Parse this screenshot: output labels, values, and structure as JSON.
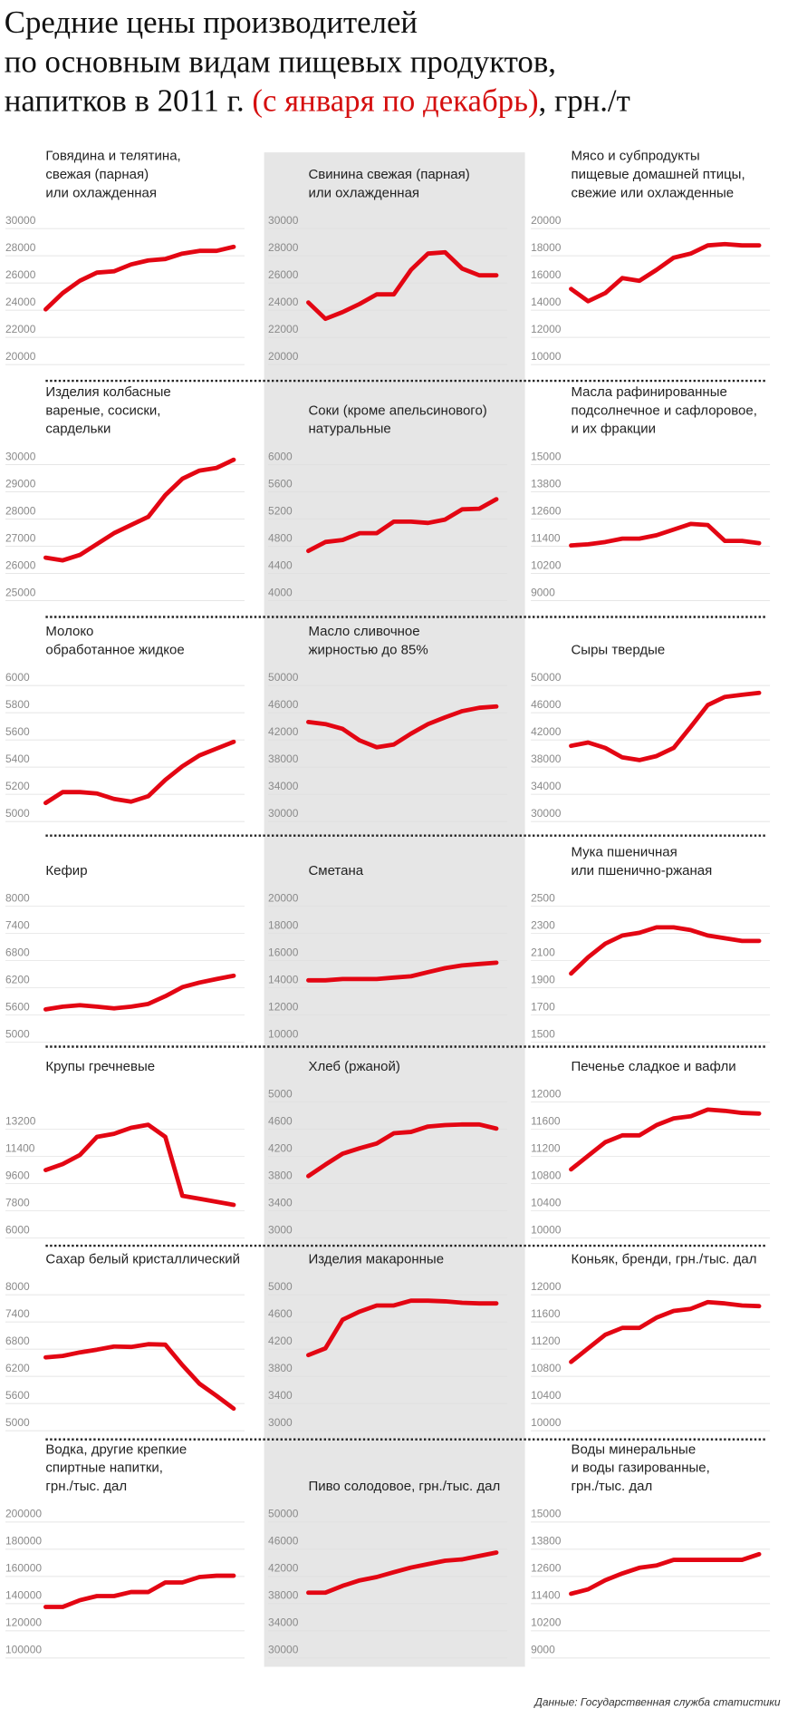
{
  "header": {
    "title": [
      "Средние цены производителей",
      "по основным видам пищевых продуктов,",
      "напитков в 2011 г."
    ],
    "title_highlight": "(с января по декабрь)",
    "title_unit": ", грн./т"
  },
  "source": "Данные: Государственная служба статистики",
  "chart_data": [
    {
      "type": "line",
      "title": [
        "Говядина и телятина,",
        "свежая (парная)",
        "или охлажденная"
      ],
      "color": "#e30613",
      "grid": true,
      "ylim": [
        20000,
        30000
      ],
      "yticks": [
        20000,
        22000,
        24000,
        26000,
        28000,
        30000
      ],
      "values": [
        23500,
        24700,
        25600,
        26200,
        26300,
        26800,
        27100,
        27200,
        27600,
        27800,
        27800,
        28100
      ]
    },
    {
      "type": "line",
      "title": [
        "Свинина свежая (парная)",
        "или охлажденная"
      ],
      "color": "#e30613",
      "grid": true,
      "ylim": [
        20000,
        30000
      ],
      "yticks": [
        20000,
        22000,
        24000,
        26000,
        28000,
        30000
      ],
      "values": [
        24000,
        22800,
        23300,
        23900,
        24600,
        24600,
        26400,
        27600,
        27700,
        26500,
        26000,
        26000
      ]
    },
    {
      "type": "line",
      "title": [
        "Мясо и субпродукты",
        "пищевые домашней птицы,",
        "свежие или охлажденные"
      ],
      "color": "#e30613",
      "grid": true,
      "ylim": [
        10000,
        20000
      ],
      "yticks": [
        10000,
        12000,
        14000,
        16000,
        18000,
        20000
      ],
      "values": [
        15000,
        14100,
        14700,
        15800,
        15600,
        16400,
        17300,
        17600,
        18200,
        18300,
        18200,
        18200
      ]
    },
    {
      "type": "line",
      "title": [
        "Изделия колбасные",
        "вареные, сосиски,",
        "сардельки"
      ],
      "color": "#e30613",
      "grid": true,
      "ylim": [
        25000,
        30000
      ],
      "yticks": [
        25000,
        26000,
        27000,
        28000,
        29000,
        30000
      ],
      "values": [
        26300,
        26200,
        26400,
        26800,
        27200,
        27500,
        27800,
        28600,
        29200,
        29500,
        29600,
        29900
      ]
    },
    {
      "type": "line",
      "title": [
        "Соки (кроме апельсинового)",
        "натуральные"
      ],
      "color": "#e30613",
      "grid": true,
      "ylim": [
        4000,
        6000
      ],
      "yticks": [
        4000,
        4400,
        4800,
        5200,
        5600,
        6000
      ],
      "values": [
        4620,
        4750,
        4780,
        4880,
        4880,
        5050,
        5050,
        5030,
        5080,
        5230,
        5240,
        5380
      ]
    },
    {
      "type": "line",
      "title": [
        "Масла рафинированные",
        "подсолнечное и сафлоровое,",
        "и их фракции"
      ],
      "color": "#e30613",
      "grid": true,
      "ylim": [
        9000,
        15000
      ],
      "yticks": [
        9000,
        10200,
        11400,
        12600,
        13800,
        15000
      ],
      "values": [
        11100,
        11150,
        11250,
        11400,
        11400,
        11550,
        11800,
        12050,
        12000,
        11300,
        11300,
        11200
      ]
    },
    {
      "type": "line",
      "title": [
        "Молоко",
        "обработанное жидкое"
      ],
      "color": "#e30613",
      "grid": true,
      "ylim": [
        5000,
        6000
      ],
      "yticks": [
        5000,
        5200,
        5400,
        5600,
        5800,
        6000
      ],
      "values": [
        5080,
        5160,
        5160,
        5150,
        5110,
        5090,
        5130,
        5250,
        5350,
        5430,
        5480,
        5530
      ]
    },
    {
      "type": "line",
      "title": [
        "Масло сливочное",
        "жирностью до 85%"
      ],
      "color": "#e30613",
      "grid": true,
      "ylim": [
        30000,
        50000
      ],
      "yticks": [
        30000,
        34000,
        38000,
        42000,
        46000,
        50000
      ],
      "values": [
        43500,
        43200,
        42500,
        40800,
        39800,
        40200,
        41800,
        43200,
        44200,
        45100,
        45600,
        45800
      ]
    },
    {
      "type": "line",
      "title": [
        "Сыры твердые"
      ],
      "color": "#e30613",
      "grid": true,
      "ylim": [
        30000,
        50000
      ],
      "yticks": [
        30000,
        34000,
        38000,
        42000,
        46000,
        50000
      ],
      "values": [
        40000,
        40500,
        39700,
        38300,
        37900,
        38500,
        39700,
        42800,
        46000,
        47200,
        47500,
        47800
      ]
    },
    {
      "type": "line",
      "title": [
        "Кефир"
      ],
      "color": "#e30613",
      "grid": true,
      "ylim": [
        5000,
        8000
      ],
      "yticks": [
        5000,
        5600,
        6200,
        6800,
        7400,
        8000
      ],
      "values": [
        5560,
        5620,
        5650,
        5620,
        5580,
        5620,
        5680,
        5850,
        6050,
        6150,
        6230,
        6300
      ]
    },
    {
      "type": "line",
      "title": [
        "Сметана"
      ],
      "color": "#e30613",
      "grid": true,
      "ylim": [
        10000,
        20000
      ],
      "yticks": [
        10000,
        12000,
        14000,
        16000,
        18000,
        20000
      ],
      "values": [
        14000,
        14000,
        14100,
        14100,
        14100,
        14200,
        14300,
        14600,
        14900,
        15100,
        15200,
        15300
      ]
    },
    {
      "type": "line",
      "title": [
        "Мука пшеничная",
        "или пшенично-ржаная"
      ],
      "color": "#e30613",
      "grid": true,
      "ylim": [
        1500,
        2500
      ],
      "yticks": [
        1500,
        1700,
        1900,
        2100,
        2300,
        2500
      ],
      "values": [
        1950,
        2070,
        2170,
        2230,
        2250,
        2290,
        2290,
        2270,
        2230,
        2210,
        2190,
        2190
      ]
    },
    {
      "type": "line",
      "title": [
        "Крупы гречневые"
      ],
      "color": "#e30613",
      "grid": true,
      "ylim": [
        6000,
        15000
      ],
      "yticks": [
        6000,
        7800,
        9600,
        11400,
        13200
      ],
      "values": [
        10000,
        10400,
        11000,
        12200,
        12400,
        12800,
        13000,
        12200,
        8300,
        8100,
        7900,
        7700
      ]
    },
    {
      "type": "line",
      "title": [
        "Хлеб (ржаной)"
      ],
      "color": "#e30613",
      "grid": true,
      "ylim": [
        3000,
        5000
      ],
      "yticks": [
        3000,
        3400,
        3800,
        4200,
        4600,
        5000
      ],
      "values": [
        3800,
        3970,
        4130,
        4210,
        4280,
        4430,
        4450,
        4530,
        4550,
        4560,
        4560,
        4500
      ]
    },
    {
      "type": "line",
      "title": [
        "Печенье сладкое и вафли"
      ],
      "color": "#e30613",
      "grid": true,
      "ylim": [
        10000,
        12000
      ],
      "yticks": [
        10000,
        10400,
        10800,
        11200,
        11600,
        12000
      ],
      "values": [
        10900,
        11100,
        11300,
        11400,
        11400,
        11550,
        11650,
        11680,
        11780,
        11760,
        11730,
        11720
      ]
    },
    {
      "type": "line",
      "title": [
        "Сахар белый кристаллический"
      ],
      "color": "#e30613",
      "grid": true,
      "ylim": [
        5000,
        8000
      ],
      "yticks": [
        5000,
        5600,
        6200,
        6800,
        7400,
        8000
      ],
      "values": [
        6450,
        6480,
        6560,
        6620,
        6690,
        6680,
        6740,
        6730,
        6280,
        5870,
        5600,
        5320
      ]
    },
    {
      "type": "line",
      "title": [
        "Изделия макаронные"
      ],
      "color": "#e30613",
      "grid": true,
      "ylim": [
        3000,
        5000
      ],
      "yticks": [
        3000,
        3400,
        3800,
        4200,
        4600,
        5000
      ],
      "values": [
        4000,
        4100,
        4520,
        4640,
        4730,
        4730,
        4800,
        4800,
        4790,
        4770,
        4760,
        4760
      ]
    },
    {
      "type": "line",
      "title": [
        "Коньяк, бренди, грн./тыс. дал"
      ],
      "color": "#e30613",
      "grid": true,
      "ylim": [
        10000,
        12000
      ],
      "yticks": [
        10000,
        10400,
        10800,
        11200,
        11600,
        12000
      ],
      "values": [
        10900,
        11100,
        11300,
        11400,
        11400,
        11550,
        11650,
        11680,
        11780,
        11760,
        11730,
        11720
      ]
    },
    {
      "type": "line",
      "title": [
        "Водка, другие крепкие",
        "спиртные напитки,",
        "грн./тыс. дал"
      ],
      "color": "#e30613",
      "grid": true,
      "ylim": [
        100000,
        200000
      ],
      "yticks": [
        100000,
        120000,
        140000,
        160000,
        180000,
        200000
      ],
      "values": [
        132000,
        132000,
        137000,
        140000,
        140000,
        143000,
        143000,
        150000,
        150000,
        154000,
        155000,
        155000
      ]
    },
    {
      "type": "line",
      "title": [
        "Пиво солодовое, грн./тыс. дал"
      ],
      "color": "#e30613",
      "grid": true,
      "ylim": [
        30000,
        50000
      ],
      "yticks": [
        30000,
        34000,
        38000,
        42000,
        46000,
        50000
      ],
      "values": [
        38500,
        38500,
        39500,
        40300,
        40800,
        41500,
        42200,
        42700,
        43200,
        43400,
        43900,
        44400
      ]
    },
    {
      "type": "line",
      "title": [
        "Воды минеральные",
        "и воды газированные,",
        "грн./тыс. дал"
      ],
      "color": "#e30613",
      "grid": true,
      "ylim": [
        9000,
        15000
      ],
      "yticks": [
        9000,
        10200,
        11400,
        12600,
        13800,
        15000
      ],
      "values": [
        11500,
        11700,
        12100,
        12400,
        12650,
        12750,
        13000,
        13000,
        13000,
        13000,
        13000,
        13250
      ]
    }
  ]
}
